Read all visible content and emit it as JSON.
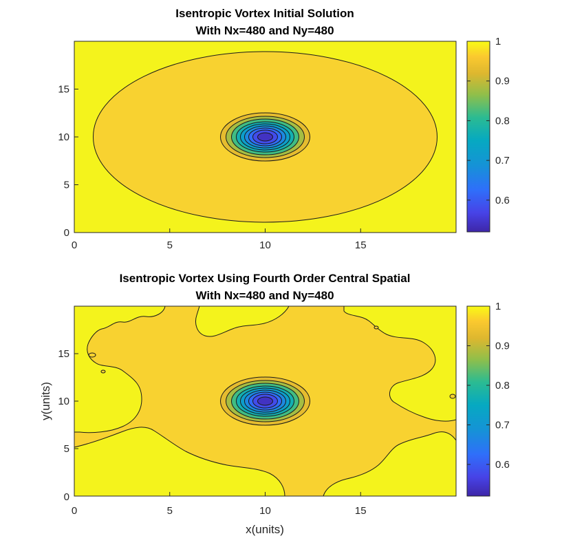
{
  "chart_data": [
    {
      "type": "contour",
      "title_line1": "Isentropic Vortex Initial Solution",
      "title_line2": "With Nx=480 and Ny=480",
      "xlabel": "",
      "ylabel": "",
      "xlim": [
        0,
        20
      ],
      "ylim": [
        0,
        20
      ],
      "xticks": [
        "0",
        "5",
        "10",
        "15"
      ],
      "yticks": [
        "0",
        "5",
        "10",
        "15"
      ],
      "colorbar": {
        "min": 0.52,
        "max": 1.0,
        "ticks": [
          "0.6",
          "0.7",
          "0.8",
          "0.9",
          "1"
        ]
      },
      "vortex_center": [
        10,
        10
      ],
      "background_region": "ellipse centered at (10,10), x from 1 to 19, y from 0.5 to 19.5, value ~0.95; outside ~1",
      "colormap": "parula"
    },
    {
      "type": "contour",
      "title_line1": "Isentropic Vortex Using Fourth Order Central Spatial",
      "title_line2": "With Nx=480 and Ny=480",
      "xlabel": "x(units)",
      "ylabel": "y(units)",
      "xlim": [
        0,
        20
      ],
      "ylim": [
        0,
        20
      ],
      "xticks": [
        "0",
        "5",
        "10",
        "15"
      ],
      "yticks": [
        "0",
        "5",
        "10",
        "15"
      ],
      "colorbar": {
        "min": 0.52,
        "max": 1.0,
        "ticks": [
          "0.6",
          "0.7",
          "0.8",
          "0.9",
          "1"
        ]
      },
      "vortex_center": [
        10,
        10
      ],
      "colormap": "parula"
    }
  ],
  "colors": {
    "yellow_high": "#f4f31c",
    "orange_mid": "#f8d230",
    "contour_line": "#1a1a1a"
  }
}
